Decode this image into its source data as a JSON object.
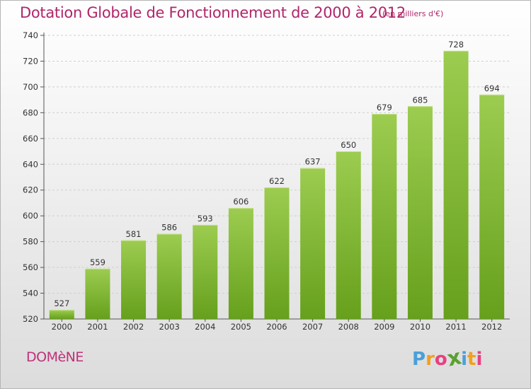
{
  "title": "Dotation Globale de Fonctionnement de 2000 à 2012",
  "subtitle": "(en milliers d'€)",
  "commune": "DOMèNE",
  "logo": {
    "letters": [
      "P",
      "r",
      "o",
      "x",
      "i",
      "t",
      "i"
    ],
    "colors": [
      "#4aa0d8",
      "#f0a020",
      "#e84080",
      "#5aa030",
      "#4aa0d8",
      "#f0a020",
      "#e84080"
    ]
  },
  "colors": {
    "title": "#b0266a",
    "bar_top": "#9ccc50",
    "bar_bottom": "#66a01c",
    "grid": "#cfcfcf",
    "axis_text": "#333333"
  },
  "chart_data": {
    "type": "bar",
    "categories": [
      "2000",
      "2001",
      "2002",
      "2003",
      "2004",
      "2005",
      "2006",
      "2007",
      "2008",
      "2009",
      "2010",
      "2011",
      "2012"
    ],
    "values": [
      527,
      559,
      581,
      586,
      593,
      606,
      622,
      637,
      650,
      679,
      685,
      728,
      694
    ],
    "ylim": [
      520,
      740
    ],
    "yticks": [
      520,
      540,
      560,
      580,
      600,
      620,
      640,
      660,
      680,
      700,
      720,
      740
    ],
    "grid": true,
    "data_labels": true
  }
}
